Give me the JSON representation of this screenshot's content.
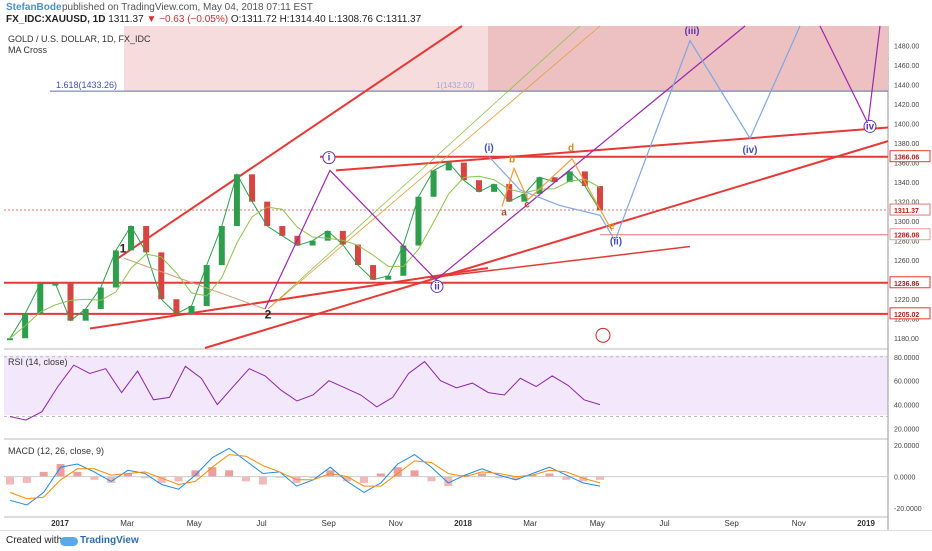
{
  "header": {
    "author": "StefanBode",
    "published": "published on TradingView.com, May 04, 2018 07:11 EST",
    "symbol": "FX_IDC:XAUUSD, 1D",
    "last": "1311.37",
    "change": "▼ −0.63 (−0.05%)",
    "ohlc": "O:1311.72 H:1314.40 L:1308.76 C:1311.37"
  },
  "legend": {
    "title": "GOLD / U.S. DOLLAR, 1D, FX_IDC",
    "indicator": "MA Cross",
    "rsi": "RSI (14, close)",
    "macd": "MACD (12, 26, close, 9)"
  },
  "footer": {
    "created": "Created with",
    "brand": "TradingView"
  },
  "annotations": {
    "fib": "1.618(1433.26)",
    "fib2": "1(1432.00)",
    "waves": [
      "i",
      "ii",
      "(i)",
      "(ii)",
      "(iii)",
      "(iv)",
      "iv",
      "1",
      "2",
      "a",
      "b",
      "c",
      "d",
      "e"
    ]
  },
  "chart_data": [
    {
      "type": "line",
      "title": "GOLD / U.S. DOLLAR, 1D, FX_IDC",
      "ylim": [
        1170,
        1500
      ],
      "y_ticks": [
        1180,
        1200,
        1220,
        1240,
        1260,
        1280,
        1300,
        1320,
        1340,
        1360,
        1380,
        1400,
        1420,
        1440,
        1460,
        1480
      ],
      "x_ticks": [
        "2017",
        "Mar",
        "May",
        "Jul",
        "Sep",
        "Nov",
        "2018",
        "Mar",
        "May",
        "Jul",
        "Sep",
        "Nov",
        "2019"
      ],
      "series": [
        {
          "values": [
            1180,
            1205,
            1236,
            1236,
            1198,
            1210,
            1232,
            1270,
            1295,
            1268,
            1220,
            1205,
            1213,
            1255,
            1295,
            1348,
            1320,
            1295,
            1285,
            1275,
            1280,
            1290,
            1276,
            1255,
            1240,
            1244,
            1275,
            1325,
            1352,
            1360,
            1342,
            1330,
            1338,
            1320,
            1328,
            1345,
            1340,
            1351,
            1336,
            1311
          ]
        }
      ],
      "price_labels": [
        "1366.06",
        "1311.37",
        "1286.08",
        "1236.86",
        "1205.02"
      ]
    },
    {
      "type": "line",
      "title": "RSI (14, close)",
      "ylim": [
        20,
        80
      ],
      "y_ticks": [
        "80.0000",
        "60.0000",
        "40.0000",
        "20.0000"
      ],
      "series": [
        {
          "values": [
            30,
            27,
            34,
            55,
            73,
            66,
            70,
            50,
            68,
            44,
            46,
            72,
            62,
            40,
            55,
            70,
            64,
            52,
            43,
            48,
            60,
            54,
            48,
            38,
            46,
            66,
            76,
            60,
            54,
            58,
            50,
            48,
            62,
            55,
            64,
            56,
            44,
            40
          ]
        }
      ]
    },
    {
      "type": "line",
      "title": "MACD (12, 26, close, 9)",
      "ylim": [
        -25,
        22
      ],
      "y_ticks": [
        "20.0000",
        "0.0000",
        "-20.0000"
      ],
      "series": [
        {
          "name": "MACD",
          "values": [
            -15,
            -18,
            -10,
            6,
            8,
            3,
            -3,
            4,
            2,
            -5,
            -8,
            1,
            12,
            18,
            10,
            2,
            3,
            -6,
            -2,
            6,
            -3,
            -10,
            -4,
            8,
            14,
            6,
            -4,
            1,
            5,
            1,
            -2,
            2,
            6,
            1,
            -4,
            -6
          ]
        },
        {
          "name": "Signal",
          "values": [
            -10,
            -14,
            -13,
            -2,
            5,
            5,
            1,
            2,
            3,
            -1,
            -5,
            -3,
            6,
            14,
            13,
            7,
            3,
            -2,
            -2,
            2,
            0,
            -6,
            -6,
            2,
            10,
            9,
            2,
            0,
            3,
            2,
            0,
            1,
            4,
            3,
            -1,
            -4
          ]
        }
      ]
    }
  ]
}
